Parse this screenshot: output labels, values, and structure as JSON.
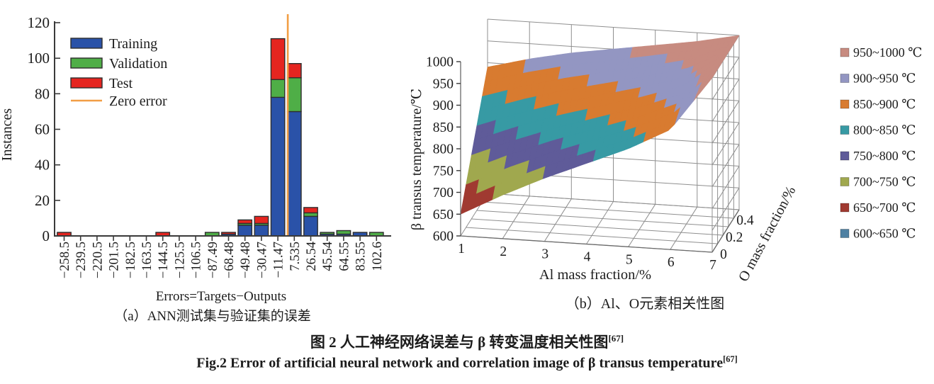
{
  "figure": {
    "caption_zh": "图 2 人工神经网络误差与 β 转变温度相关性图",
    "caption_zh_sup": "[67]",
    "caption_en": "Fig.2 Error of artificial neural network and correlation image of β transus temperature",
    "caption_en_sup": "[67]"
  },
  "chart_data": [
    {
      "type": "bar",
      "stacked": true,
      "xlabel": "Errors=Targets−Outputs",
      "ylabel": "Instances",
      "sub_caption": "（a）ANN测试集与验证集的误差",
      "ylim": [
        0,
        120
      ],
      "yticks": [
        0,
        20,
        40,
        60,
        80,
        100,
        120
      ],
      "categories": [
        "−258.5",
        "−239.5",
        "−220.5",
        "−201.5",
        "−182.5",
        "−163.5",
        "−144.5",
        "−125.5",
        "−106.5",
        "−87.49",
        "−68.48",
        "−49.48",
        "−30.47",
        "−11.47",
        "7.535",
        "26.54",
        "45.54",
        "64.55",
        "83.55",
        "102.6"
      ],
      "x_values": [
        -258.5,
        -239.5,
        -220.5,
        -201.5,
        -182.5,
        -163.5,
        -144.5,
        -125.5,
        -106.5,
        -87.49,
        -68.48,
        -49.48,
        -30.47,
        -11.47,
        7.535,
        26.54,
        45.54,
        64.55,
        83.55,
        102.6
      ],
      "series": [
        {
          "name": "Training",
          "color": "#2a52a8",
          "values": [
            0,
            0,
            0,
            0,
            0,
            0,
            0,
            0,
            0,
            0,
            1,
            6,
            6,
            78,
            70,
            11,
            1,
            1,
            2,
            0
          ]
        },
        {
          "name": "Validation",
          "color": "#4fae47",
          "values": [
            0,
            0,
            0,
            0,
            0,
            0,
            0,
            0,
            0,
            2,
            0,
            1,
            1,
            10,
            19,
            2,
            1,
            2,
            0,
            2
          ]
        },
        {
          "name": "Test",
          "color": "#e52520",
          "values": [
            2,
            0,
            0,
            0,
            0,
            0,
            2,
            0,
            0,
            0,
            1,
            2,
            4,
            23,
            8,
            3,
            0,
            0,
            0,
            0
          ]
        }
      ],
      "zero_line": {
        "label": "Zero error",
        "color": "#f29e45",
        "x": 0
      },
      "colors": {
        "axis": "#3a3a3a",
        "bar_edge": "#2e2e2e"
      },
      "legend_position": "upper-left",
      "grid": false
    },
    {
      "type": "surface3d",
      "xlabel": "Al mass fraction/%",
      "ylabel": "O mass fraction/%",
      "zlabel": "β transus temperature/℃",
      "sub_caption": "（b）Al、O元素相关性图",
      "x_ticks": [
        1,
        2,
        3,
        4,
        5,
        6,
        7
      ],
      "y_ticks": [
        "0",
        "0.2",
        "0.4"
      ],
      "y_tick_values": [
        0,
        0.2,
        0.4
      ],
      "z_ticks": [
        600,
        650,
        700,
        750,
        800,
        850,
        900,
        950,
        1000
      ],
      "x_range": [
        1,
        7
      ],
      "y_range": [
        0,
        0.5
      ],
      "z_range": [
        600,
        1000
      ],
      "al_values": [
        1,
        2,
        3,
        4,
        5,
        6,
        7
      ],
      "temps_at_o_0": [
        650,
        700,
        745,
        785,
        825,
        875,
        1000
      ],
      "temps_at_o_max": [
        890,
        915,
        935,
        950,
        965,
        980,
        1000
      ],
      "o_max": 0.5,
      "bands": [
        {
          "range": "600~650 ℃",
          "color": "#4e80a2"
        },
        {
          "range": "650~700 ℃",
          "color": "#a03a31"
        },
        {
          "range": "700~750 ℃",
          "color": "#a0a84e"
        },
        {
          "range": "750~800 ℃",
          "color": "#5f5b99"
        },
        {
          "range": "800~850 ℃",
          "color": "#379aa4"
        },
        {
          "range": "850~900 ℃",
          "color": "#d87b30"
        },
        {
          "range": "900~950 ℃",
          "color": "#9396c2"
        },
        {
          "range": "950~1000 ℃",
          "color": "#c78b80"
        }
      ],
      "legend_order": "high-to-low",
      "colors": {
        "grid": "#8f8f8f",
        "edge": "#6a6a6a",
        "axis": "#3a3a3a"
      }
    }
  ]
}
